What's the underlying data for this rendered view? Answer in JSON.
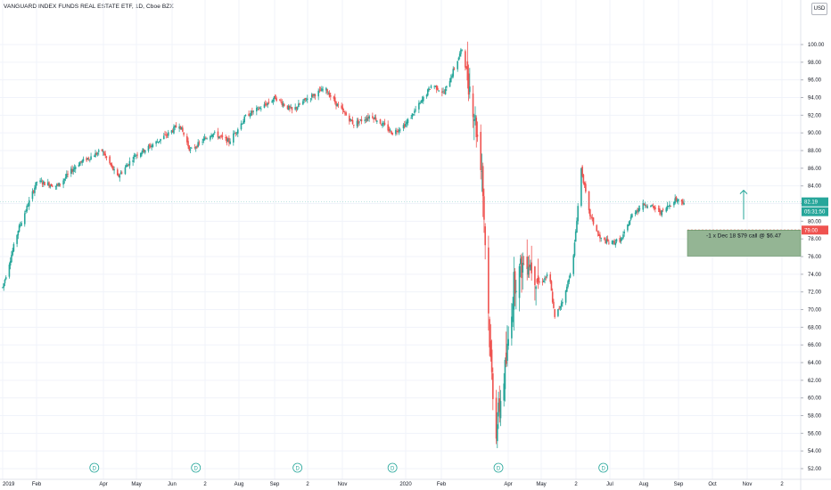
{
  "header": {
    "title": "VANGUARD INDEX FUNDS REAL ESTATE ETF, 1D, Cboe BZX"
  },
  "currency_badge": "USD",
  "colors": {
    "up": "#26a69a",
    "down": "#ef5350",
    "grid": "#f0f3fa",
    "axis": "#e0e3eb",
    "position_fill": "#8fb28f",
    "position_line": "#ef5350",
    "arrow": "#26a69a"
  },
  "chart_data": {
    "type": "candlestick",
    "title": "VANGUARD INDEX FUNDS REAL ESTATE ETF, 1D, Cboe BZX",
    "ylim": [
      51,
      104
    ],
    "y_ticks": [
      52,
      54,
      56,
      58,
      60,
      62,
      64,
      66,
      68,
      70,
      72,
      74,
      76,
      78,
      80,
      82,
      84,
      86,
      88,
      90,
      92,
      94,
      96,
      98,
      100
    ],
    "y_tick_labels": [
      "52.00",
      "54.00",
      "56.00",
      "58.00",
      "60.00",
      "62.00",
      "64.00",
      "66.00",
      "68.00",
      "70.00",
      "72.00",
      "74.00",
      "76.00",
      "78.00",
      "80.00",
      "82.00",
      "84.00",
      "86.00",
      "88.00",
      "90.00",
      "92.00",
      "94.00",
      "96.00",
      "98.00",
      "100.00"
    ],
    "x_tick_labels": [
      "2019",
      "Feb",
      "Apr",
      "May",
      "Jun",
      "2",
      "Aug",
      "Sep",
      "2",
      "Nov",
      "2020",
      "Feb",
      "Apr",
      "May",
      "2",
      "Jul",
      "Aug",
      "Sep",
      "Oct",
      "Nov",
      "2"
    ],
    "price_path": [
      [
        "2019-01-01",
        72.5
      ],
      [
        "2019-01-15",
        79.0
      ],
      [
        "2019-02-01",
        84.5
      ],
      [
        "2019-02-20",
        84.0
      ],
      [
        "2019-03-10",
        86.5
      ],
      [
        "2019-04-01",
        88.0
      ],
      [
        "2019-04-15",
        85.0
      ],
      [
        "2019-05-01",
        87.5
      ],
      [
        "2019-05-15",
        88.5
      ],
      [
        "2019-06-01",
        90.0
      ],
      [
        "2019-06-10",
        91.0
      ],
      [
        "2019-06-20",
        88.0
      ],
      [
        "2019-07-10",
        90.0
      ],
      [
        "2019-07-25",
        89.0
      ],
      [
        "2019-08-10",
        92.0
      ],
      [
        "2019-08-25",
        93.0
      ],
      [
        "2019-09-05",
        94.0
      ],
      [
        "2019-09-20",
        92.5
      ],
      [
        "2019-10-05",
        94.0
      ],
      [
        "2019-10-20",
        95.0
      ],
      [
        "2019-11-01",
        93.0
      ],
      [
        "2019-11-15",
        91.0
      ],
      [
        "2019-12-01",
        92.0
      ],
      [
        "2019-12-20",
        90.0
      ],
      [
        "2020-01-01",
        91.0
      ],
      [
        "2020-01-15",
        93.5
      ],
      [
        "2020-01-25",
        95.5
      ],
      [
        "2020-02-05",
        94.5
      ],
      [
        "2020-02-21",
        99.5
      ],
      [
        "2020-03-01",
        94.0
      ],
      [
        "2020-03-10",
        86.0
      ],
      [
        "2020-03-18",
        64.0
      ],
      [
        "2020-03-23",
        56.5
      ],
      [
        "2020-04-01",
        64.0
      ],
      [
        "2020-04-08",
        73.0
      ],
      [
        "2020-04-20",
        76.0
      ],
      [
        "2020-05-01",
        73.0
      ],
      [
        "2020-05-10",
        74.0
      ],
      [
        "2020-05-15",
        69.0
      ],
      [
        "2020-05-25",
        72.0
      ],
      [
        "2020-06-01",
        76.0
      ],
      [
        "2020-06-08",
        86.0
      ],
      [
        "2020-06-15",
        81.0
      ],
      [
        "2020-06-25",
        78.0
      ],
      [
        "2020-07-05",
        77.5
      ],
      [
        "2020-07-15",
        78.0
      ],
      [
        "2020-07-25",
        81.0
      ],
      [
        "2020-08-05",
        82.0
      ],
      [
        "2020-08-20",
        81.0
      ],
      [
        "2020-09-01",
        82.5
      ],
      [
        "2020-09-09",
        82.19
      ]
    ],
    "last_price": "82.19",
    "countdown": "05:31:50",
    "strike_level": "79.00",
    "position_label": "-1 x  Dec 18 $79 call @ $6.47",
    "dividend_marker": "D",
    "dividend_dates": [
      "2019-03-25",
      "2019-06-25",
      "2019-09-25",
      "2019-12-20",
      "2020-03-25",
      "2020-06-28"
    ]
  }
}
